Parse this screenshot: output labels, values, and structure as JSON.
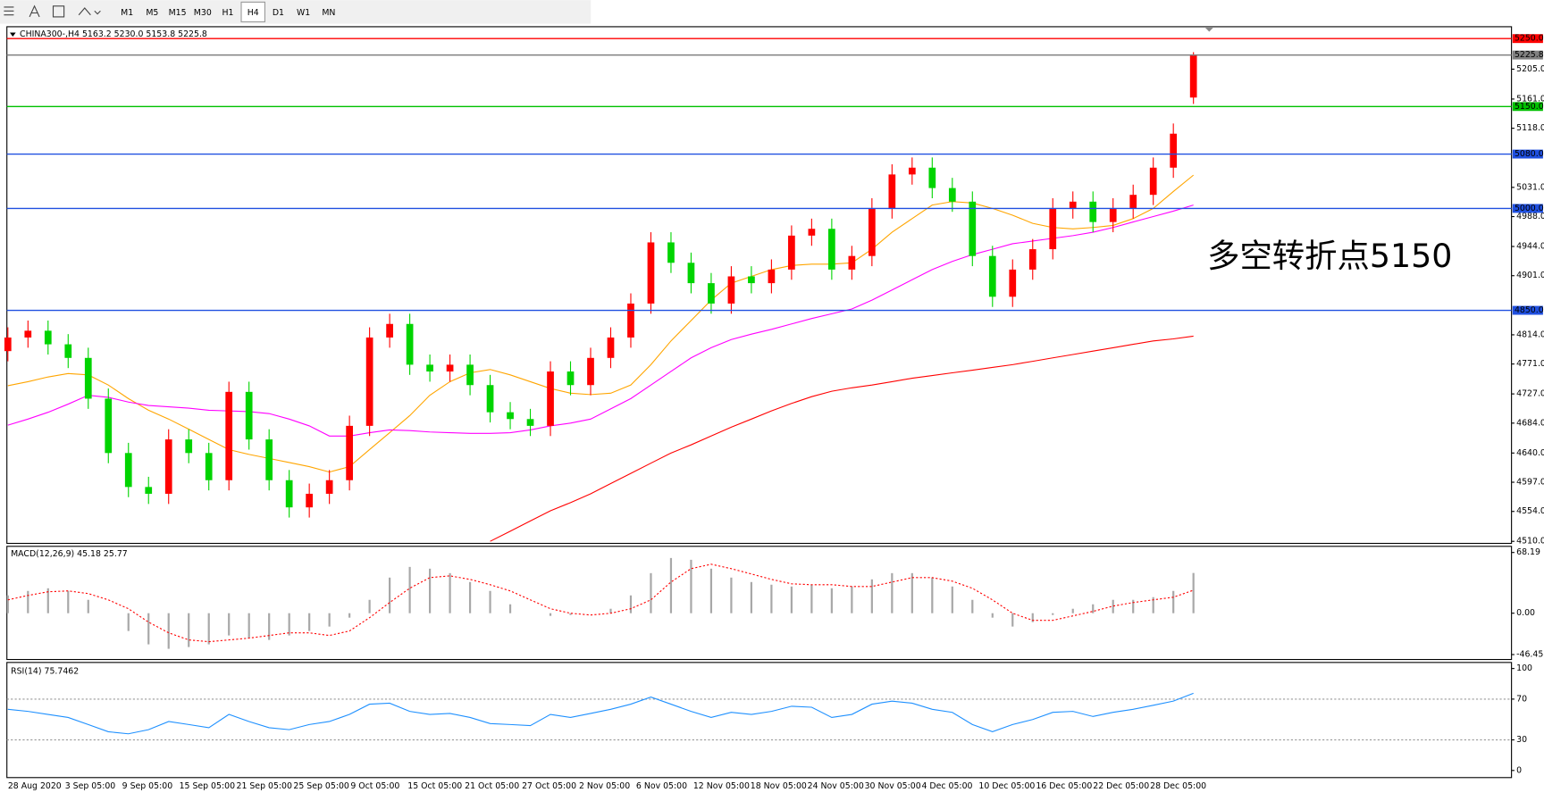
{
  "toolbar": {
    "timeframes": [
      "M1",
      "M5",
      "M15",
      "M30",
      "H1",
      "H4",
      "D1",
      "W1",
      "MN"
    ],
    "active": "H4"
  },
  "chart_data": [
    {
      "type": "candlestick",
      "header": "CHINA300-,H4  5163.2 5230.0 5153.8 5225.8",
      "annotation": "多空转折点5150",
      "annotation_color": "#ff0000",
      "x_labels": [
        "28 Aug 2020",
        "3 Sep 05:00",
        "9 Sep 05:00",
        "15 Sep 05:00",
        "21 Sep 05:00",
        "25 Sep 05:00",
        "9 Oct 05:00",
        "15 Oct 05:00",
        "21 Oct 05:00",
        "27 Oct 05:00",
        "2 Nov 05:00",
        "6 Nov 05:00",
        "12 Nov 05:00",
        "18 Nov 05:00",
        "24 Nov 05:00",
        "30 Nov 05:00",
        "4 Dec 05:00",
        "10 Dec 05:00",
        "16 Dec 05:00",
        "22 Dec 05:00",
        "28 Dec 05:00"
      ],
      "open": [
        4790,
        4810,
        4820,
        4800,
        4780,
        4720,
        4640,
        4590,
        4580,
        4660,
        4640,
        4600,
        4730,
        4660,
        4600,
        4560,
        4580,
        4600,
        4680,
        4810,
        4830,
        4770,
        4760,
        4770,
        4740,
        4700,
        4690,
        4680,
        4760,
        4740,
        4780,
        4810,
        4860,
        4950,
        4920,
        4890,
        4860,
        4900,
        4890,
        4910,
        4960,
        4970,
        4910,
        4930,
        5000,
        5050,
        5060,
        5030,
        5010,
        4930,
        4870,
        4910,
        4940,
        5000,
        5010,
        4980,
        5000,
        5020,
        5060,
        5163.2
      ],
      "high": [
        4825,
        4835,
        4835,
        4815,
        4795,
        4735,
        4655,
        4605,
        4675,
        4675,
        4655,
        4745,
        4745,
        4675,
        4615,
        4595,
        4615,
        4695,
        4825,
        4845,
        4845,
        4785,
        4785,
        4785,
        4755,
        4715,
        4705,
        4775,
        4775,
        4795,
        4825,
        4875,
        4965,
        4965,
        4935,
        4905,
        4915,
        4915,
        4925,
        4975,
        4985,
        4985,
        4945,
        5015,
        5065,
        5075,
        5075,
        5045,
        5025,
        4945,
        4925,
        4955,
        5015,
        5025,
        5025,
        5015,
        5035,
        5075,
        5125,
        5230
      ],
      "low": [
        4775,
        4795,
        4785,
        4765,
        4705,
        4625,
        4575,
        4565,
        4565,
        4625,
        4585,
        4585,
        4645,
        4585,
        4545,
        4545,
        4565,
        4585,
        4665,
        4795,
        4755,
        4745,
        4745,
        4725,
        4685,
        4675,
        4665,
        4665,
        4725,
        4725,
        4765,
        4795,
        4845,
        4905,
        4875,
        4845,
        4845,
        4875,
        4875,
        4895,
        4945,
        4895,
        4895,
        4915,
        4985,
        5035,
        5015,
        4995,
        4915,
        4855,
        4855,
        4895,
        4925,
        4985,
        4965,
        4965,
        4985,
        5005,
        5045,
        5153.8
      ],
      "close": [
        4810,
        4820,
        4800,
        4780,
        4720,
        4640,
        4590,
        4580,
        4660,
        4640,
        4600,
        4730,
        4660,
        4600,
        4560,
        4580,
        4600,
        4680,
        4810,
        4830,
        4770,
        4760,
        4770,
        4740,
        4700,
        4690,
        4680,
        4760,
        4740,
        4780,
        4810,
        4860,
        4950,
        4920,
        4890,
        4860,
        4900,
        4890,
        4910,
        4960,
        4970,
        4910,
        4930,
        5000,
        5050,
        5060,
        5030,
        5010,
        4930,
        4870,
        4910,
        4940,
        5000,
        5010,
        4980,
        5000,
        5020,
        5060,
        5110,
        5225.8
      ],
      "up_color": "#ff0000",
      "down_color": "#00d400",
      "moving_averages": [
        {
          "color": "#ffa500",
          "values": [
            4739,
            4745,
            4752,
            4757,
            4755,
            4740,
            4720,
            4703,
            4690,
            4675,
            4660,
            4645,
            4638,
            4632,
            4626,
            4620,
            4612,
            4620,
            4645,
            4670,
            4695,
            4725,
            4745,
            4758,
            4763,
            4755,
            4745,
            4735,
            4728,
            4726,
            4728,
            4740,
            4770,
            4805,
            4835,
            4865,
            4890,
            4900,
            4910,
            4916,
            4918,
            4918,
            4920,
            4940,
            4965,
            4985,
            5005,
            5010,
            5008,
            5000,
            4990,
            4978,
            4972,
            4970,
            4972,
            4975,
            4985,
            5000,
            5025,
            5049
          ]
        },
        {
          "color": "#ff00ff",
          "values": [
            4681,
            4690,
            4700,
            4712,
            4725,
            4722,
            4715,
            4710,
            4708,
            4706,
            4703,
            4702,
            4701,
            4698,
            4690,
            4680,
            4665,
            4665,
            4670,
            4674,
            4673,
            4671,
            4670,
            4669,
            4669,
            4670,
            4674,
            4680,
            4684,
            4690,
            4705,
            4720,
            4740,
            4760,
            4780,
            4795,
            4807,
            4815,
            4822,
            4830,
            4838,
            4845,
            4852,
            4865,
            4880,
            4895,
            4910,
            4922,
            4932,
            4940,
            4948,
            4952,
            4956,
            4960,
            4965,
            4972,
            4980,
            4988,
            4996,
            5005
          ]
        },
        {
          "color": "#ff0000",
          "values": [
            null,
            null,
            null,
            null,
            null,
            null,
            null,
            null,
            null,
            null,
            null,
            null,
            null,
            null,
            null,
            null,
            null,
            null,
            null,
            null,
            null,
            null,
            null,
            null,
            4510,
            4525,
            4540,
            4555,
            4567,
            4580,
            4595,
            4610,
            4625,
            4640,
            4652,
            4665,
            4678,
            4690,
            4702,
            4713,
            4723,
            4731,
            4736,
            4740,
            4745,
            4750,
            4754,
            4758,
            4762,
            4766,
            4770,
            4775,
            4780,
            4785,
            4790,
            4795,
            4800,
            4805,
            4808,
            4812
          ]
        }
      ],
      "levels": [
        {
          "value": 5250,
          "label": "5250.0",
          "color": "#ff0000"
        },
        {
          "value": 5225.8,
          "label": "5225.8",
          "color": "#808080"
        },
        {
          "value": 5150,
          "label": "5150.0",
          "color": "#00c000"
        },
        {
          "value": 5080,
          "label": "5080.0",
          "color": "#2050e0"
        },
        {
          "value": 5000,
          "label": "5000.0",
          "color": "#2050e0"
        },
        {
          "value": 4850,
          "label": "4850.0",
          "color": "#2050e0"
        }
      ],
      "ylim": [
        4507,
        5266
      ],
      "yticks": [
        {
          "value": 5205,
          "label": "5205.0"
        },
        {
          "value": 5161,
          "label": "5161.0"
        },
        {
          "value": 5118,
          "label": "5118.0"
        },
        {
          "value": 5031,
          "label": "5031.0"
        },
        {
          "value": 4988,
          "label": "4988.0"
        },
        {
          "value": 4944,
          "label": "4944.0"
        },
        {
          "value": 4901,
          "label": "4901.0"
        },
        {
          "value": 4814,
          "label": "4814.0"
        },
        {
          "value": 4771,
          "label": "4771.0"
        },
        {
          "value": 4727,
          "label": "4727.0"
        },
        {
          "value": 4684,
          "label": "4684.0"
        },
        {
          "value": 4640,
          "label": "4640.0"
        },
        {
          "value": 4597,
          "label": "4597.0"
        },
        {
          "value": 4554,
          "label": "4554.0"
        },
        {
          "value": 4510,
          "label": "4510.0"
        }
      ]
    },
    {
      "type": "macd",
      "title": "MACD(12,26,9) 45.18 25.77",
      "histogram": {
        "color": "#a8a8a8",
        "values": [
          20,
          25,
          28,
          25,
          15,
          0,
          -20,
          -35,
          -40,
          -38,
          -35,
          -25,
          -28,
          -30,
          -25,
          -20,
          -15,
          -5,
          15,
          40,
          52,
          50,
          45,
          35,
          25,
          10,
          0,
          -3,
          -2,
          0,
          5,
          20,
          45,
          62,
          60,
          50,
          40,
          35,
          32,
          30,
          32,
          28,
          30,
          38,
          45,
          45,
          40,
          30,
          15,
          -5,
          -15,
          -10,
          -2,
          5,
          10,
          15,
          15,
          18,
          25,
          45.18
        ]
      },
      "signal": {
        "color": "#ff0000",
        "values": [
          15,
          20,
          24,
          25,
          22,
          15,
          5,
          -10,
          -22,
          -30,
          -32,
          -30,
          -28,
          -25,
          -22,
          -22,
          -25,
          -20,
          -5,
          12,
          28,
          40,
          42,
          38,
          32,
          25,
          15,
          5,
          0,
          -2,
          0,
          5,
          15,
          35,
          50,
          55,
          50,
          44,
          38,
          33,
          32,
          32,
          30,
          30,
          35,
          40,
          40,
          36,
          28,
          15,
          0,
          -8,
          -8,
          -3,
          2,
          8,
          12,
          15,
          18,
          25.77
        ]
      },
      "ylim": [
        -52,
        74
      ],
      "yticks": [
        68.19,
        {
          "value": 0,
          "label": "0.00"
        },
        -46.45
      ]
    },
    {
      "type": "line",
      "title": "RSI(14) 75.7462",
      "series": [
        {
          "color": "#1e90ff",
          "values": [
            60,
            58,
            55,
            52,
            45,
            38,
            36,
            40,
            48,
            45,
            42,
            55,
            48,
            42,
            40,
            45,
            48,
            55,
            65,
            66,
            58,
            55,
            56,
            52,
            46,
            45,
            44,
            55,
            52,
            56,
            60,
            65,
            72,
            65,
            58,
            52,
            57,
            55,
            58,
            63,
            62,
            52,
            55,
            65,
            68,
            66,
            60,
            57,
            45,
            38,
            45,
            50,
            57,
            58,
            53,
            57,
            60,
            64,
            68,
            75.7462
          ]
        }
      ],
      "levels": [
        70,
        30
      ],
      "ylim": [
        -7,
        105
      ],
      "yticks": [
        100,
        70,
        30,
        0
      ]
    }
  ]
}
